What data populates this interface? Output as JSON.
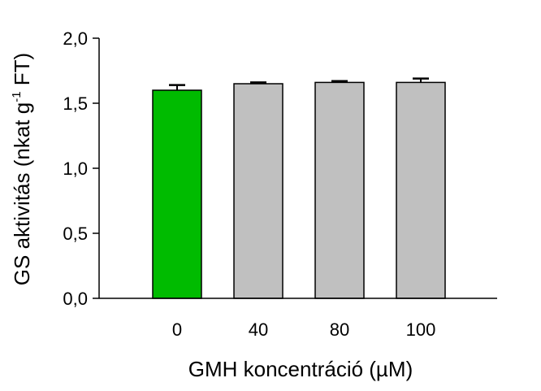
{
  "chart_data": {
    "type": "bar",
    "title": "",
    "xlabel": "GMH koncentráció (µM)",
    "ylabel": {
      "main": "GS aktivitás (nkat g",
      "superscript": "-1",
      "suffix": " FT)"
    },
    "categories": [
      "0",
      "40",
      "80",
      "100"
    ],
    "values": [
      1.6,
      1.65,
      1.66,
      1.66
    ],
    "errors": [
      0.04,
      0.01,
      0.01,
      0.03
    ],
    "bar_colors": [
      "#00bb00",
      "#c0c0c0",
      "#c0c0c0",
      "#c0c0c0"
    ],
    "ylim": [
      0,
      2.0
    ],
    "yticks": [
      0.0,
      0.5,
      1.0,
      1.5,
      2.0
    ],
    "ytick_labels": [
      "0,0",
      "0,5",
      "1,0",
      "1,5",
      "2,0"
    ],
    "grid": false,
    "legend": "none"
  },
  "colors": {
    "highlight": "#00bb00",
    "default": "#c0c0c0",
    "axis": "#000000"
  }
}
